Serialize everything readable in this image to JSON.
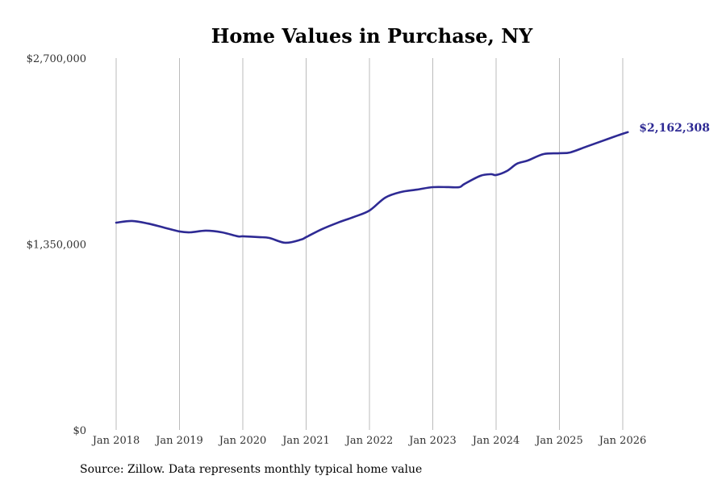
{
  "chart_data": {
    "type": "line",
    "title": "Home Values in Purchase, NY",
    "xlabel": "",
    "ylabel": "",
    "ylim": [
      0,
      2700000
    ],
    "yticks": [
      0,
      1350000,
      2700000
    ],
    "ytick_labels": [
      "$0",
      "$1,350,000",
      "$2,700,000"
    ],
    "xticks": [
      2018,
      2019,
      2020,
      2021,
      2022,
      2023,
      2024,
      2025,
      2026
    ],
    "xtick_labels": [
      "Jan 2018",
      "Jan 2019",
      "Jan 2020",
      "Jan 2021",
      "Jan 2022",
      "Jan 2023",
      "Jan 2024",
      "Jan 2025",
      "Jan 2026"
    ],
    "grid": "vertical",
    "series": [
      {
        "name": "Typical home value",
        "color": "#2e2a94",
        "x": [
          2018.0,
          2018.25,
          2018.5,
          2018.75,
          2019.0,
          2019.17,
          2019.42,
          2019.67,
          2019.92,
          2020.0,
          2020.25,
          2020.42,
          2020.67,
          2020.92,
          2021.0,
          2021.25,
          2021.5,
          2021.75,
          2022.0,
          2022.25,
          2022.5,
          2022.75,
          2023.0,
          2023.25,
          2023.42,
          2023.5,
          2023.75,
          2023.92,
          2024.0,
          2024.17,
          2024.33,
          2024.5,
          2024.75,
          2025.0,
          2025.17,
          2025.42,
          2025.67,
          2025.92,
          2026.08
        ],
        "values": [
          1505000,
          1517000,
          1499000,
          1470000,
          1441000,
          1435000,
          1447000,
          1435000,
          1406000,
          1406000,
          1400000,
          1394000,
          1359000,
          1382000,
          1400000,
          1458000,
          1505000,
          1546000,
          1593000,
          1687000,
          1728000,
          1745000,
          1763000,
          1763000,
          1763000,
          1786000,
          1845000,
          1857000,
          1851000,
          1880000,
          1933000,
          1956000,
          2003000,
          2009000,
          2015000,
          2056000,
          2097000,
          2138000,
          2162308
        ]
      }
    ],
    "end_label": "$2,162,308"
  },
  "source": "Source: Zillow. Data represents monthly typical home value"
}
